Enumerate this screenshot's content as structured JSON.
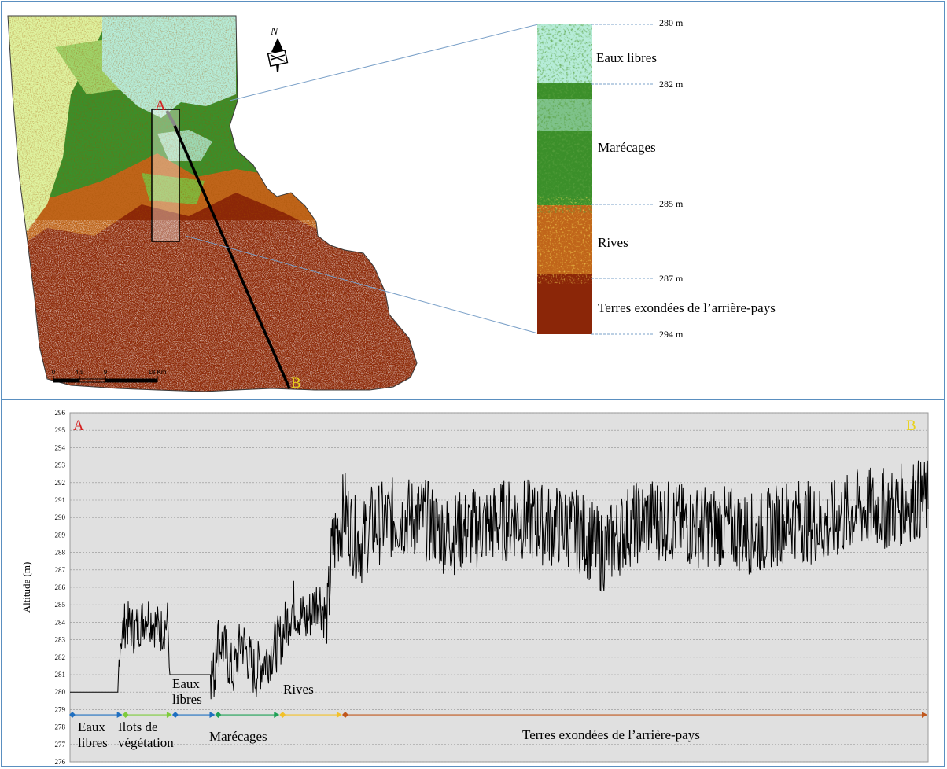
{
  "map": {
    "scalebar": {
      "ticks": [
        "0",
        "4,5",
        "9",
        "18 Km"
      ]
    },
    "north_label": "N",
    "point_a": "A",
    "point_b": "B",
    "colors": {
      "water": "#b6ecd8",
      "marsh": "#3b8f2a",
      "light_veg": "#dff3a0",
      "banks": "#c0651a",
      "dry_land": "#8b2608",
      "bare": "#ffffff"
    }
  },
  "zoom_strip": {
    "zones": [
      {
        "label": "Eaux libres",
        "top_m": "280 m"
      },
      {
        "label": "Marécages",
        "top_m": "282 m"
      },
      {
        "label": "Rives",
        "top_m": "285 m"
      },
      {
        "label": "Terres exondées de l’arrière-pays",
        "top_m": "287 m"
      }
    ],
    "bottom_m": "294 m"
  },
  "chart_data": {
    "type": "line",
    "ylabel": "Altitude (m)",
    "ylim": [
      276,
      296
    ],
    "y_ticks": [
      276,
      277,
      278,
      279,
      280,
      281,
      282,
      283,
      284,
      285,
      286,
      287,
      288,
      289,
      290,
      291,
      292,
      293,
      294,
      295,
      296
    ],
    "xlim": [
      0,
      100
    ],
    "grid": true,
    "start_label": "A",
    "end_label": "B",
    "profile_outline": {
      "x": [
        0,
        5.6,
        5.8,
        6.5,
        7.5,
        9,
        10.5,
        11.4,
        11.6,
        16.4,
        16.6,
        18,
        19,
        20,
        21.6,
        22,
        23,
        24.5,
        26,
        27.5,
        29,
        30,
        30.5,
        31,
        32,
        33,
        34,
        35,
        38,
        41,
        44,
        48,
        52,
        56,
        58,
        60,
        62,
        65,
        68,
        72,
        76,
        80,
        84,
        88,
        92,
        96,
        98,
        100
      ],
      "y": [
        280,
        280,
        283,
        284,
        283.5,
        284.5,
        283.5,
        284,
        281,
        281,
        283.5,
        282.5,
        281,
        283,
        281,
        281.5,
        282,
        283,
        285,
        284,
        285.5,
        284,
        288,
        289,
        290.5,
        289,
        288.5,
        289.5,
        290,
        290,
        289,
        289.5,
        290,
        289.5,
        289.5,
        289,
        288,
        289.5,
        290,
        289.5,
        289.5,
        289,
        290,
        289.5,
        290.5,
        290.5,
        291,
        291
      ]
    },
    "annotations": [
      "Eaux libres",
      "Eaux libres",
      "Ilots de végétation",
      "Marécages",
      "Rives",
      "Terres exondées de l’arrière-pays"
    ],
    "zone_bar": {
      "y": 278.7,
      "segments": [
        {
          "label": "Eaux libres",
          "x_start": 0,
          "x_end": 6.2,
          "color": "#1f6fc0"
        },
        {
          "label": "Ilots de végétation",
          "x_start": 6.2,
          "x_end": 12,
          "color": "#7ecb3c"
        },
        {
          "label": "Eaux libres",
          "x_start": 12,
          "x_end": 17,
          "color": "#1f6fc0"
        },
        {
          "label": "Marécages",
          "x_start": 17,
          "x_end": 24.5,
          "color": "#1ea055"
        },
        {
          "label": "Rives",
          "x_start": 24.5,
          "x_end": 31.8,
          "color": "#f2c12a"
        },
        {
          "label": "Terres exondées de l’arrière-pays",
          "x_start": 31.8,
          "x_end": 100,
          "color": "#c0571c"
        }
      ]
    }
  }
}
